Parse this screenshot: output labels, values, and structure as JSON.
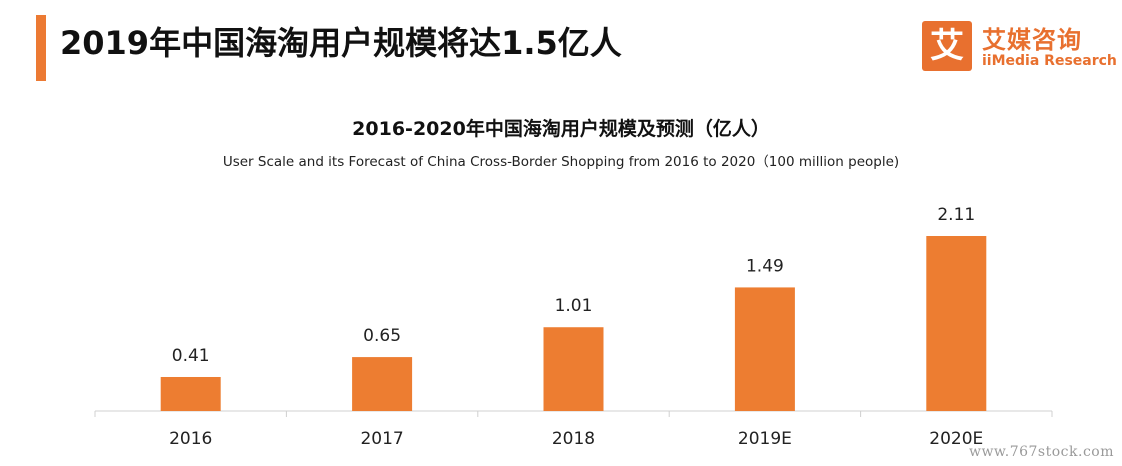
{
  "header": {
    "title": "2019年中国海淘用户规模将达1.5亿人"
  },
  "logo": {
    "mark": "艾",
    "name_cn": "艾媒咨询",
    "name_en": "iiMedia Research"
  },
  "watermark": "www.767stock.com",
  "colors": {
    "bar": "#ed7d31",
    "accent": "#ec7a33",
    "axis": "#d0d0d0"
  },
  "chart_data": {
    "type": "bar",
    "title": "2016-2020年中国海淘用户规模及预测（亿人）",
    "subtitle": "User Scale and its Forecast of China Cross-Border Shopping from 2016 to 2020（100 million people)",
    "categories": [
      "2016",
      "2017",
      "2018",
      "2019E",
      "2020E"
    ],
    "values": [
      0.41,
      0.65,
      1.01,
      1.49,
      2.11
    ],
    "value_labels": [
      "0.41",
      "0.65",
      "1.01",
      "1.49",
      "2.11"
    ],
    "xlabel": "",
    "ylabel": "",
    "ylim": [
      0,
      2.11
    ],
    "grid": false,
    "legend": "none"
  }
}
